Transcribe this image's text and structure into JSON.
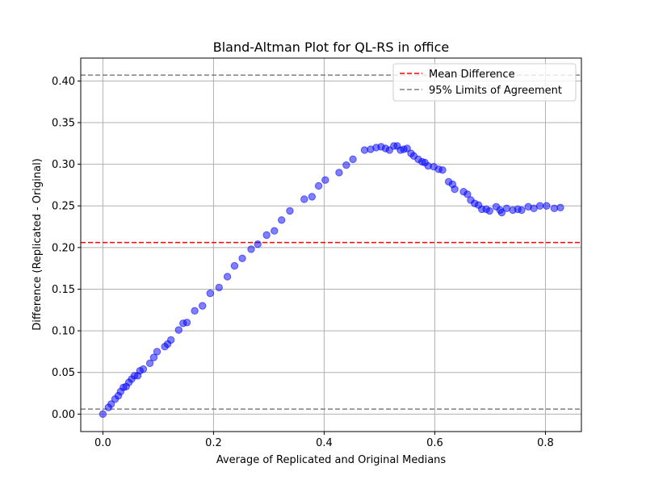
{
  "chart_data": {
    "type": "scatter",
    "title": "Bland-Altman Plot for QL-RS in office",
    "xlabel": "Average of Replicated and Original Medians",
    "ylabel": "Difference (Replicated - Original)",
    "xlim": [
      -0.04,
      0.865
    ],
    "ylim": [
      -0.021,
      0.4275
    ],
    "xticks": [
      0.0,
      0.2,
      0.4,
      0.6,
      0.8
    ],
    "xtick_labels": [
      "0.0",
      "0.2",
      "0.4",
      "0.6",
      "0.8"
    ],
    "yticks": [
      0.0,
      0.05,
      0.1,
      0.15,
      0.2,
      0.25,
      0.3,
      0.35,
      0.4
    ],
    "ytick_labels": [
      "0.00",
      "0.05",
      "0.10",
      "0.15",
      "0.20",
      "0.25",
      "0.30",
      "0.35",
      "0.40"
    ],
    "grid": true,
    "legend_position": "top-right",
    "point_color": "#0000ff",
    "mean_difference": 0.206,
    "limits_of_agreement": [
      0.006,
      0.407
    ],
    "mean_line_color": "#ff0000",
    "limits_line_color": "#808080",
    "legend": [
      {
        "label": "Mean Difference",
        "color": "#ff0000"
      },
      {
        "label": "95% Limits of Agreement",
        "color": "#808080"
      }
    ],
    "points": [
      [
        0.0,
        0.0
      ],
      [
        0.01,
        0.008
      ],
      [
        0.015,
        0.012
      ],
      [
        0.022,
        0.018
      ],
      [
        0.028,
        0.022
      ],
      [
        0.032,
        0.027
      ],
      [
        0.037,
        0.032
      ],
      [
        0.042,
        0.033
      ],
      [
        0.047,
        0.038
      ],
      [
        0.052,
        0.042
      ],
      [
        0.057,
        0.046
      ],
      [
        0.063,
        0.046
      ],
      [
        0.067,
        0.052
      ],
      [
        0.073,
        0.054
      ],
      [
        0.085,
        0.061
      ],
      [
        0.092,
        0.068
      ],
      [
        0.098,
        0.075
      ],
      [
        0.112,
        0.081
      ],
      [
        0.117,
        0.084
      ],
      [
        0.123,
        0.089
      ],
      [
        0.137,
        0.101
      ],
      [
        0.145,
        0.109
      ],
      [
        0.152,
        0.11
      ],
      [
        0.166,
        0.124
      ],
      [
        0.18,
        0.13
      ],
      [
        0.194,
        0.145
      ],
      [
        0.21,
        0.152
      ],
      [
        0.225,
        0.165
      ],
      [
        0.238,
        0.178
      ],
      [
        0.252,
        0.187
      ],
      [
        0.268,
        0.198
      ],
      [
        0.28,
        0.204
      ],
      [
        0.296,
        0.215
      ],
      [
        0.31,
        0.22
      ],
      [
        0.323,
        0.233
      ],
      [
        0.338,
        0.244
      ],
      [
        0.364,
        0.258
      ],
      [
        0.378,
        0.261
      ],
      [
        0.39,
        0.274
      ],
      [
        0.402,
        0.281
      ],
      [
        0.427,
        0.29
      ],
      [
        0.44,
        0.299
      ],
      [
        0.452,
        0.306
      ],
      [
        0.473,
        0.317
      ],
      [
        0.484,
        0.318
      ],
      [
        0.494,
        0.32
      ],
      [
        0.503,
        0.321
      ],
      [
        0.511,
        0.319
      ],
      [
        0.518,
        0.317
      ],
      [
        0.526,
        0.322
      ],
      [
        0.532,
        0.322
      ],
      [
        0.538,
        0.317
      ],
      [
        0.544,
        0.318
      ],
      [
        0.55,
        0.319
      ],
      [
        0.557,
        0.313
      ],
      [
        0.562,
        0.31
      ],
      [
        0.57,
        0.306
      ],
      [
        0.577,
        0.303
      ],
      [
        0.582,
        0.302
      ],
      [
        0.588,
        0.298
      ],
      [
        0.598,
        0.297
      ],
      [
        0.607,
        0.294
      ],
      [
        0.614,
        0.293
      ],
      [
        0.625,
        0.279
      ],
      [
        0.632,
        0.276
      ],
      [
        0.636,
        0.27
      ],
      [
        0.652,
        0.267
      ],
      [
        0.659,
        0.264
      ],
      [
        0.665,
        0.257
      ],
      [
        0.672,
        0.253
      ],
      [
        0.679,
        0.251
      ],
      [
        0.685,
        0.246
      ],
      [
        0.693,
        0.246
      ],
      [
        0.699,
        0.244
      ],
      [
        0.711,
        0.249
      ],
      [
        0.718,
        0.245
      ],
      [
        0.721,
        0.242
      ],
      [
        0.73,
        0.247
      ],
      [
        0.741,
        0.245
      ],
      [
        0.75,
        0.246
      ],
      [
        0.757,
        0.245
      ],
      [
        0.769,
        0.249
      ],
      [
        0.779,
        0.247
      ],
      [
        0.79,
        0.25
      ],
      [
        0.802,
        0.25
      ],
      [
        0.816,
        0.247
      ],
      [
        0.827,
        0.248
      ]
    ]
  }
}
